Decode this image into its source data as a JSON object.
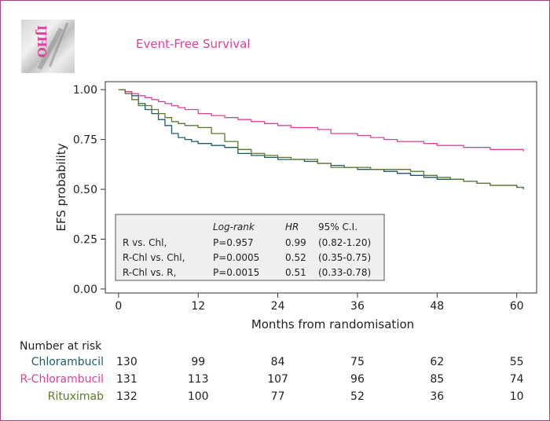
{
  "logo": {
    "text": "IJHO",
    "icon": "journal-logo"
  },
  "chart_data": {
    "type": "line",
    "title": "Event-Free Survival",
    "xlabel": "Months from randomisation",
    "ylabel": "EFS probability",
    "xlim": [
      -2,
      63
    ],
    "ylim": [
      -0.02,
      1.04
    ],
    "xticks": [
      0,
      12,
      24,
      36,
      48,
      60
    ],
    "yticks": [
      0.0,
      0.25,
      0.5,
      0.75,
      1.0
    ],
    "xtick_labels": [
      "0",
      "12",
      "24",
      "36",
      "48",
      "60"
    ],
    "ytick_labels": [
      "0.00",
      "0.25",
      "0.50",
      "0.75",
      "1.00"
    ],
    "grid": false,
    "series": [
      {
        "name": "Chlorambucil",
        "color": "#1f5a6b",
        "x": [
          0,
          1,
          2,
          3,
          4,
          5,
          6,
          7,
          8,
          9,
          10,
          11,
          12,
          14,
          16,
          18,
          20,
          22,
          24,
          26,
          28,
          30,
          32,
          34,
          36,
          38,
          40,
          42,
          44,
          46,
          48,
          50,
          52,
          54,
          56,
          58,
          60,
          61
        ],
        "y": [
          1.0,
          0.99,
          0.97,
          0.93,
          0.9,
          0.88,
          0.85,
          0.82,
          0.78,
          0.76,
          0.75,
          0.74,
          0.73,
          0.72,
          0.71,
          0.68,
          0.67,
          0.66,
          0.65,
          0.65,
          0.64,
          0.63,
          0.62,
          0.61,
          0.6,
          0.6,
          0.59,
          0.58,
          0.57,
          0.56,
          0.55,
          0.55,
          0.54,
          0.53,
          0.52,
          0.52,
          0.51,
          0.5
        ]
      },
      {
        "name": "R-Chlorambucil",
        "color": "#e0409a",
        "x": [
          0,
          1,
          2,
          3,
          4,
          5,
          6,
          7,
          8,
          9,
          10,
          12,
          14,
          16,
          18,
          20,
          22,
          24,
          26,
          28,
          30,
          32,
          34,
          36,
          38,
          40,
          42,
          44,
          46,
          48,
          50,
          52,
          54,
          56,
          58,
          60,
          61
        ],
        "y": [
          1.0,
          0.99,
          0.98,
          0.97,
          0.96,
          0.95,
          0.94,
          0.93,
          0.92,
          0.91,
          0.9,
          0.88,
          0.87,
          0.86,
          0.85,
          0.84,
          0.83,
          0.82,
          0.81,
          0.81,
          0.8,
          0.78,
          0.78,
          0.77,
          0.76,
          0.75,
          0.74,
          0.74,
          0.73,
          0.72,
          0.72,
          0.71,
          0.71,
          0.7,
          0.7,
          0.7,
          0.69
        ]
      },
      {
        "name": "Rituximab",
        "color": "#5a7a2a",
        "x": [
          0,
          1,
          2,
          3,
          4,
          5,
          6,
          7,
          8,
          9,
          10,
          11,
          12,
          14,
          16,
          18,
          20,
          22,
          24,
          26,
          28,
          30,
          32,
          34,
          36,
          38,
          40,
          42,
          44,
          46,
          48,
          50,
          52,
          54,
          56,
          58,
          60,
          61
        ],
        "y": [
          1.0,
          0.98,
          0.95,
          0.92,
          0.92,
          0.9,
          0.88,
          0.86,
          0.84,
          0.83,
          0.82,
          0.82,
          0.81,
          0.78,
          0.74,
          0.7,
          0.68,
          0.67,
          0.66,
          0.65,
          0.65,
          0.63,
          0.61,
          0.61,
          0.61,
          0.6,
          0.6,
          0.6,
          0.59,
          0.57,
          0.56,
          0.55,
          0.54,
          0.53,
          0.52,
          0.52,
          0.51,
          0.51
        ]
      }
    ],
    "stats_table": {
      "headers": [
        "",
        "Log-rank",
        "HR",
        "95% C.I."
      ],
      "rows": [
        [
          "R vs. Chl,",
          "P=0.957",
          "0.99",
          "(0.82-1.20)"
        ],
        [
          "R-Chl vs. Chl,",
          "P=0.0005",
          "0.52",
          "(0.35-0.75)"
        ],
        [
          "R-Chl vs. R,",
          "P=0.0015",
          "0.51",
          "(0.33-0.78)"
        ]
      ]
    }
  },
  "risk_table": {
    "header": "Number at risk",
    "times": [
      0,
      12,
      24,
      36,
      48,
      60
    ],
    "rows": [
      {
        "name": "Chlorambucil",
        "color": "#1f5a6b",
        "values": [
          130,
          99,
          84,
          75,
          62,
          55
        ]
      },
      {
        "name": "R-Chlorambucil",
        "color": "#e0409a",
        "values": [
          131,
          113,
          107,
          96,
          85,
          74
        ]
      },
      {
        "name": "Rituximab",
        "color": "#5a7a2a",
        "values": [
          132,
          100,
          77,
          52,
          36,
          10
        ]
      }
    ]
  }
}
